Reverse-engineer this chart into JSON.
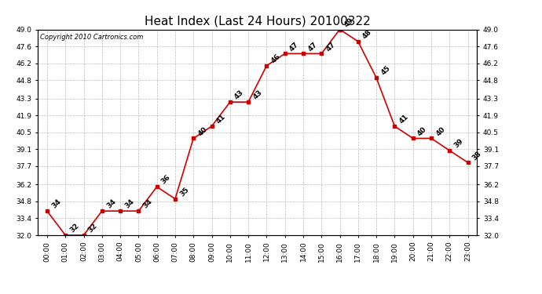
{
  "title": "Heat Index (Last 24 Hours) 20100322",
  "copyright_text": "Copyright 2010 Cartronics.com",
  "hours": [
    "00:00",
    "01:00",
    "02:00",
    "03:00",
    "04:00",
    "05:00",
    "06:00",
    "07:00",
    "08:00",
    "09:00",
    "10:00",
    "11:00",
    "12:00",
    "13:00",
    "14:00",
    "15:00",
    "16:00",
    "17:00",
    "18:00",
    "19:00",
    "20:00",
    "21:00",
    "22:00",
    "23:00"
  ],
  "values": [
    34,
    32,
    32,
    34,
    34,
    34,
    36,
    35,
    40,
    41,
    43,
    43,
    46,
    47,
    47,
    47,
    49,
    48,
    45,
    41,
    40,
    40,
    39,
    38
  ],
  "line_color": "#cc0000",
  "marker_color": "#cc0000",
  "bg_color": "#ffffff",
  "plot_bg_color": "#ffffff",
  "grid_color": "#bbbbbb",
  "ylim_min": 32.0,
  "ylim_max": 49.0,
  "yticks": [
    32.0,
    33.4,
    34.8,
    36.2,
    37.7,
    39.1,
    40.5,
    41.9,
    43.3,
    44.8,
    46.2,
    47.6,
    49.0
  ],
  "title_fontsize": 11,
  "label_fontsize": 6.5,
  "annotation_fontsize": 6.5,
  "copyright_fontsize": 6
}
